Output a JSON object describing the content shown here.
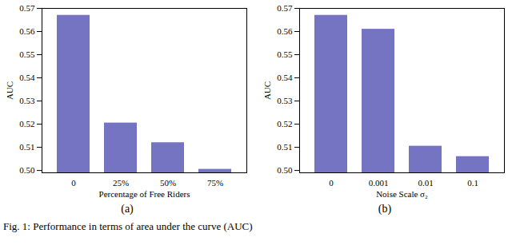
{
  "chart_data": [
    {
      "type": "bar",
      "panel_label": "(a)",
      "x_label": "Percentage of Free Riders",
      "y_label": "AUC",
      "categories": [
        "0",
        "25%",
        "50%",
        "75%"
      ],
      "values": [
        0.567,
        0.5205,
        0.512,
        0.5005
      ],
      "color": "#7474c2",
      "ylim": [
        0.499,
        0.57
      ],
      "yticks": [
        {
          "value": 0.5,
          "label": "0.50"
        },
        0.51,
        0.52,
        0.53,
        0.54,
        0.55,
        0.56,
        0.57
      ]
    },
    {
      "type": "bar",
      "panel_label": "(b)",
      "x_label": "Noise Scale σ₂",
      "y_label": "AUC",
      "categories": [
        "0",
        "0.001",
        "0.01",
        "0.1"
      ],
      "values": [
        0.567,
        0.561,
        0.5105,
        0.506
      ],
      "color": "#7474c2",
      "ylim": [
        0.499,
        0.57
      ],
      "yticks": [
        {
          "value": 0.5,
          "label": "0.50"
        },
        0.51,
        0.52,
        0.53,
        0.54,
        0.55,
        0.56,
        0.57
      ]
    }
  ],
  "caption": "Fig. 1: Performance in terms of area under the curve (AUC)"
}
